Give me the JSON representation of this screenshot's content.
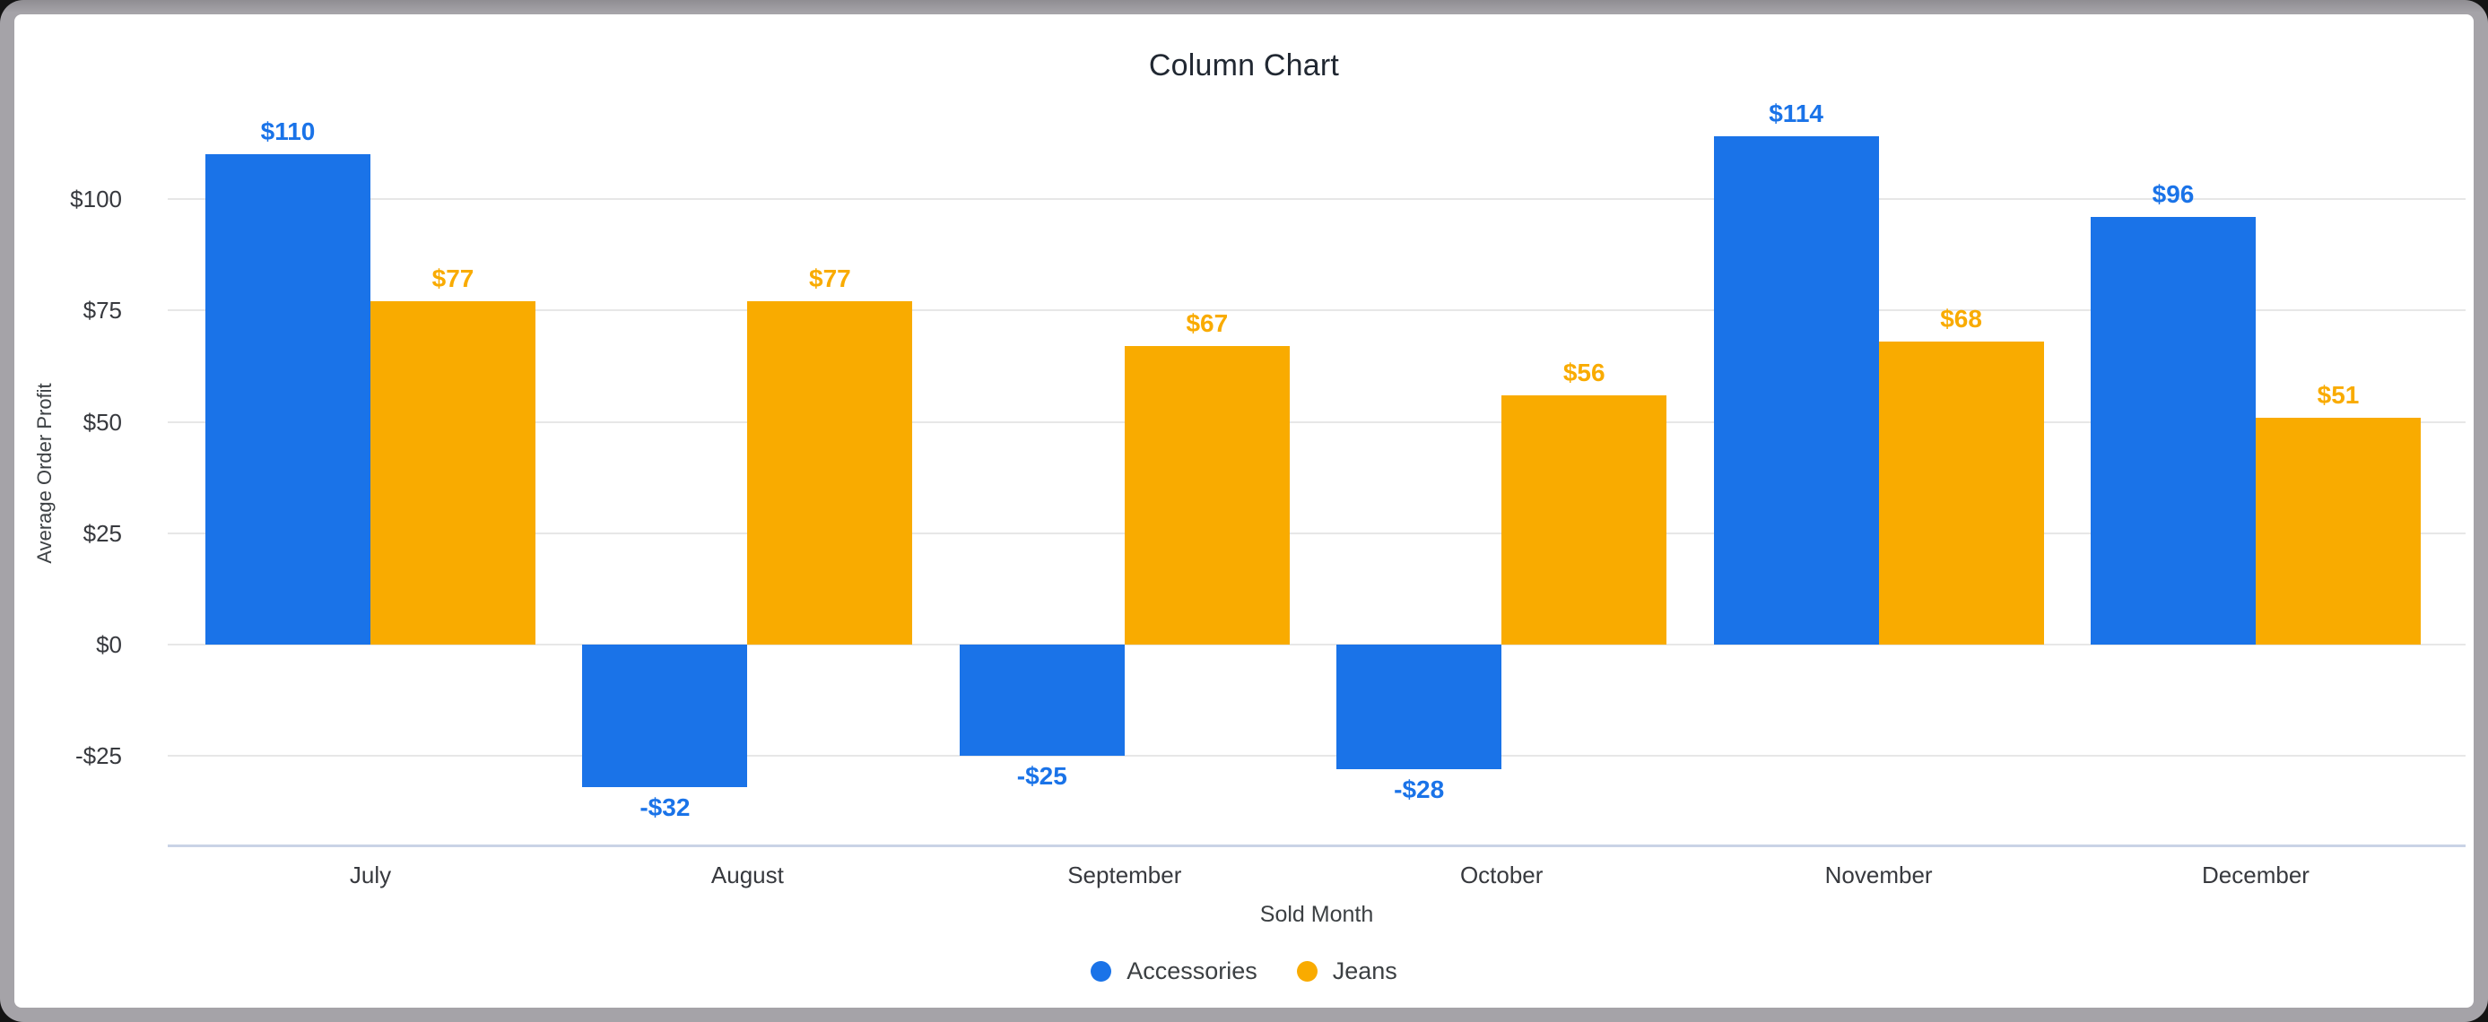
{
  "window": {
    "frame_color": "#a5a3a8",
    "card_background": "#ffffff"
  },
  "chart_data": {
    "type": "bar",
    "title": "Column Chart",
    "xlabel": "Sold Month",
    "ylabel": "Average Order Profit",
    "categories": [
      "July",
      "August",
      "September",
      "October",
      "November",
      "December"
    ],
    "series": [
      {
        "name": "Accessories",
        "color": "#1a73e8",
        "values": [
          110,
          -32,
          -25,
          -28,
          114,
          96
        ],
        "labels": [
          "$110",
          "-$32",
          "-$25",
          "-$28",
          "$114",
          "$96"
        ]
      },
      {
        "name": "Jeans",
        "color": "#f9ab00",
        "values": [
          77,
          77,
          67,
          56,
          68,
          51
        ],
        "labels": [
          "$77",
          "$77",
          "$67",
          "$56",
          "$68",
          "$51"
        ]
      }
    ],
    "y_ticks": [
      {
        "label": "$100",
        "value": 100
      },
      {
        "label": "$75",
        "value": 75
      },
      {
        "label": "$50",
        "value": 50
      },
      {
        "label": "$25",
        "value": 25
      },
      {
        "label": "$0",
        "value": 0
      },
      {
        "label": "-$25",
        "value": -25
      }
    ],
    "ylim": [
      -45,
      125
    ],
    "grid": true,
    "grid_color": "#e7e7e7",
    "axis_line_color": "#c9d3e6",
    "legend_position": "bottom"
  }
}
